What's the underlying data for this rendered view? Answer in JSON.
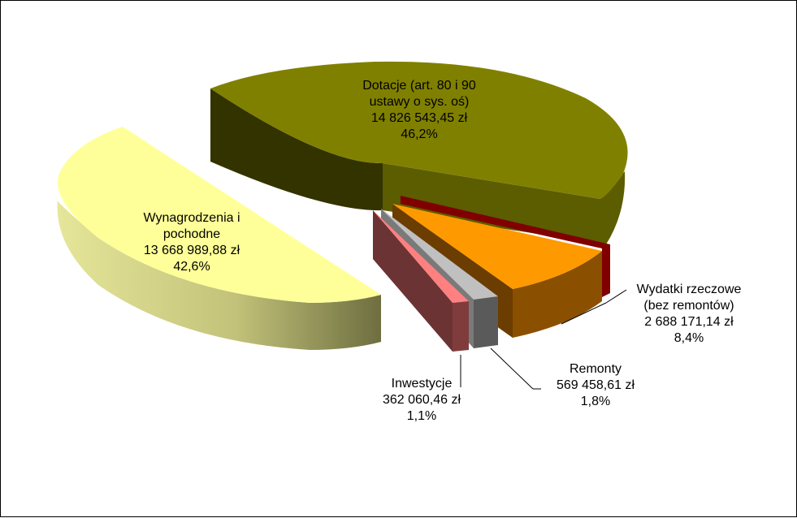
{
  "chart_data": {
    "type": "pie",
    "title": "",
    "slices": [
      {
        "name": "Dotacje (art. 80 i 90 ustawy o sys. oś)",
        "line1": "Dotacje (art. 80 i 90",
        "line2": "ustawy o sys. oś)",
        "amount": "14 826 543,45 zł",
        "percent": "46,2%",
        "value": 14826543.45,
        "color": "#808000"
      },
      {
        "name": "Wydatki rzeczowe (bez remontów)",
        "line1": "Wydatki rzeczowe",
        "line2": "(bez remontów)",
        "amount": "2 688 171,14 zł",
        "percent": "8,4%",
        "value": 2688171.14,
        "color": "#ff9900"
      },
      {
        "name": "Remonty",
        "line1": "Remonty",
        "line2": "",
        "amount": "569 458,61 zł",
        "percent": "1,8%",
        "value": 569458.61,
        "color": "#c0c0c0"
      },
      {
        "name": "Inwestycje",
        "line1": "Inwestycje",
        "line2": "",
        "amount": "362 060,46 zł",
        "percent": "1,1%",
        "value": 362060.46,
        "color": "#ff8080"
      },
      {
        "name": "Wynagrodzenia i pochodne",
        "line1": "Wynagrodzenia i",
        "line2": "pochodne",
        "amount": "13 668 989,88 zł",
        "percent": "42,6%",
        "value": 13668989.88,
        "color": "#ffff99"
      }
    ],
    "legend": "none",
    "style": "3D exploded pie"
  }
}
